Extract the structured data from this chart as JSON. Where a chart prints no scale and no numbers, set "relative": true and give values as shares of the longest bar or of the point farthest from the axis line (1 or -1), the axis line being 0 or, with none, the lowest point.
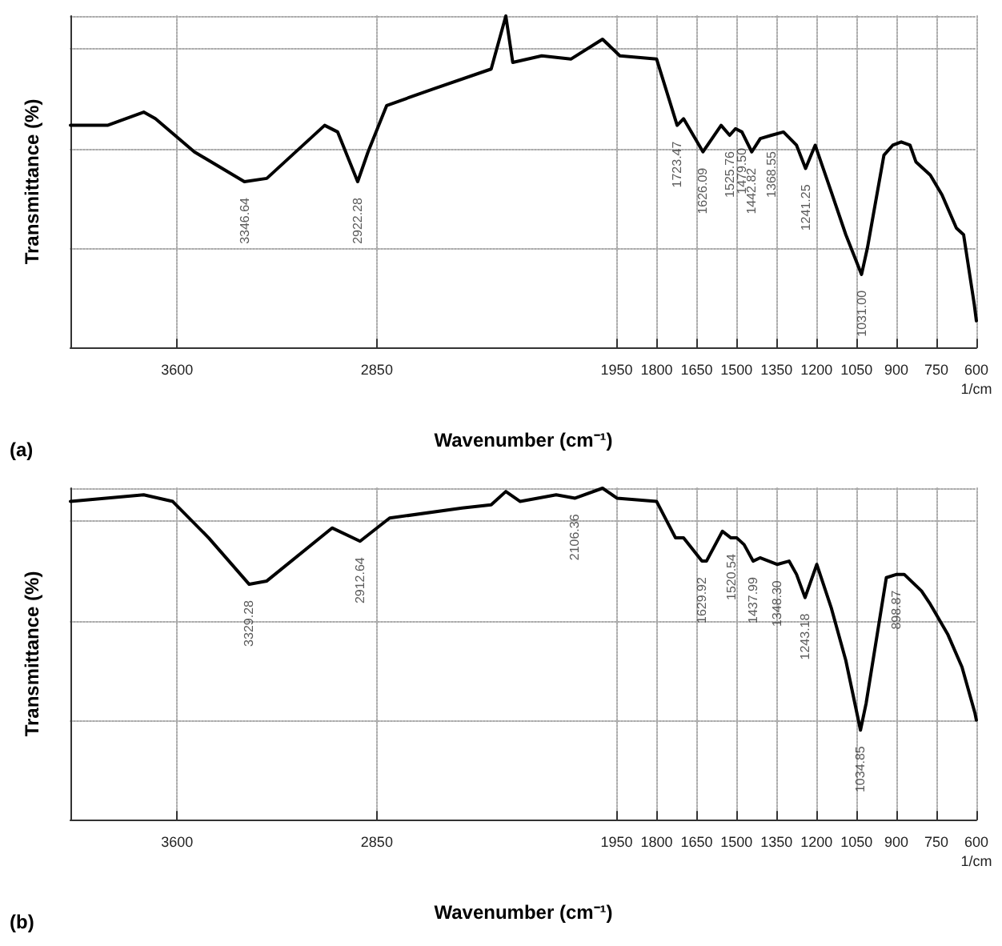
{
  "chart_data": [
    {
      "type": "line",
      "title": "(a)",
      "xlabel": "Wavenumber (cm⁻¹)",
      "ylabel": "Transmittance (%)",
      "relative": true,
      "xlim": [
        4000,
        600
      ],
      "xticks": [
        3600,
        2850,
        1950,
        1800,
        1650,
        1500,
        1350,
        1200,
        1050,
        900,
        750,
        {
          "value": 600,
          "label": "600\n1/cm"
        }
      ],
      "grid": true,
      "marker": "none",
      "line_style": "solid",
      "x": [
        4000,
        3861,
        3725,
        3681,
        3535,
        3347,
        3263,
        3046,
        2997,
        2922,
        2883,
        2813,
        2638,
        2421,
        2366,
        2340,
        2231,
        2122,
        2003,
        1938,
        1800,
        1723,
        1699,
        1626,
        1558,
        1526,
        1504,
        1480,
        1443,
        1411,
        1369,
        1324,
        1275,
        1241,
        1205,
        1145,
        1090,
        1031,
        1009,
        947,
        914,
        882,
        849,
        827,
        773,
        729,
        675,
        648,
        608,
        600
      ],
      "series": [
        {
          "color": "#000000",
          "values": [
            0.67,
            0.67,
            0.71,
            0.69,
            0.59,
            0.5,
            0.51,
            0.67,
            0.65,
            0.5,
            0.59,
            0.73,
            0.78,
            0.84,
            1.0,
            0.86,
            0.88,
            0.87,
            0.93,
            0.88,
            0.87,
            0.67,
            0.69,
            0.59,
            0.67,
            0.64,
            0.66,
            0.65,
            0.59,
            0.63,
            0.64,
            0.65,
            0.61,
            0.54,
            0.61,
            0.47,
            0.34,
            0.22,
            0.3,
            0.58,
            0.61,
            0.62,
            0.61,
            0.56,
            0.52,
            0.46,
            0.36,
            0.34,
            0.13,
            0.08
          ]
        }
      ],
      "annotations": [
        {
          "text": "3346.64",
          "x": 3346.64,
          "y": 0.5
        },
        {
          "text": "2922.28",
          "x": 2922.28,
          "y": 0.5
        },
        {
          "text": "1723.47",
          "x": 1723.47,
          "y": 0.67
        },
        {
          "text": "1626.09",
          "x": 1626.09,
          "y": 0.59
        },
        {
          "text": "1525.76",
          "x": 1525.76,
          "y": 0.64
        },
        {
          "text": "1479.50",
          "x": 1479.5,
          "y": 0.65
        },
        {
          "text": "1442.82",
          "x": 1442.82,
          "y": 0.59
        },
        {
          "text": "1368.55",
          "x": 1368.55,
          "y": 0.64
        },
        {
          "text": "1241.25",
          "x": 1241.25,
          "y": 0.54
        },
        {
          "text": "1031.00",
          "x": 1031.0,
          "y": 0.22
        }
      ]
    },
    {
      "type": "line",
      "title": "(b)",
      "xlabel": "Wavenumber (cm⁻¹)",
      "ylabel": "Transmittance (%)",
      "relative": true,
      "xlim": [
        4000,
        600
      ],
      "xticks": [
        3600,
        2850,
        1950,
        1800,
        1650,
        1500,
        1350,
        1200,
        1050,
        900,
        750,
        {
          "value": 600,
          "label": "600\n1/cm"
        }
      ],
      "grid": true,
      "marker": "none",
      "line_style": "solid",
      "x": [
        4000,
        3725,
        3616,
        3481,
        3329,
        3263,
        3018,
        2913,
        2802,
        2530,
        2421,
        2366,
        2312,
        2177,
        2106,
        2003,
        1949,
        1800,
        1729,
        1699,
        1630,
        1613,
        1553,
        1521,
        1499,
        1472,
        1438,
        1412,
        1348,
        1303,
        1275,
        1243,
        1199,
        1145,
        1090,
        1035,
        1014,
        938,
        899,
        871,
        806,
        773,
        708,
        654,
        605,
        600
      ],
      "series": [
        {
          "color": "#000000",
          "values": [
            0.96,
            0.98,
            0.96,
            0.85,
            0.71,
            0.72,
            0.88,
            0.84,
            0.91,
            0.94,
            0.95,
            0.99,
            0.96,
            0.98,
            0.97,
            1.0,
            0.97,
            0.96,
            0.85,
            0.85,
            0.78,
            0.78,
            0.87,
            0.85,
            0.85,
            0.83,
            0.78,
            0.79,
            0.77,
            0.78,
            0.74,
            0.67,
            0.77,
            0.64,
            0.48,
            0.27,
            0.35,
            0.73,
            0.74,
            0.74,
            0.69,
            0.65,
            0.56,
            0.46,
            0.32,
            0.3
          ]
        }
      ],
      "annotations": [
        {
          "text": "3329.28",
          "x": 3329.28,
          "y": 0.71
        },
        {
          "text": "2912.64",
          "x": 2912.64,
          "y": 0.84
        },
        {
          "text": "2106.36",
          "x": 2106.36,
          "y": 0.97
        },
        {
          "text": "1629.92",
          "x": 1629.92,
          "y": 0.78
        },
        {
          "text": "1520.54",
          "x": 1520.54,
          "y": 0.85
        },
        {
          "text": "1437.99",
          "x": 1437.99,
          "y": 0.78
        },
        {
          "text": "1348.30",
          "x": 1348.3,
          "y": 0.77
        },
        {
          "text": "1243.18",
          "x": 1243.18,
          "y": 0.67
        },
        {
          "text": "1034.85",
          "x": 1034.85,
          "y": 0.27
        },
        {
          "text": "898.87",
          "x": 898.87,
          "y": 0.74
        }
      ]
    }
  ]
}
